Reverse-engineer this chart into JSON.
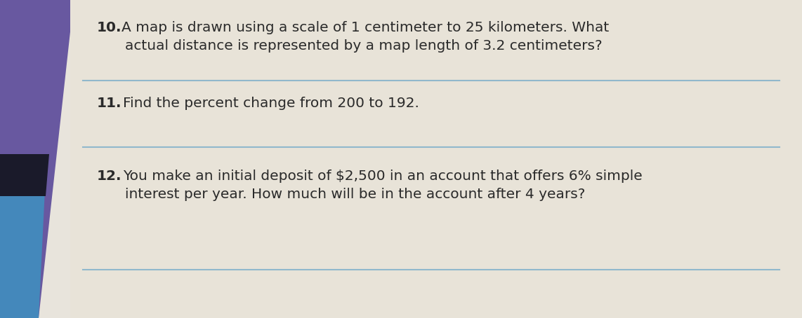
{
  "background_color": "#e8e4dc",
  "left_color_top": "#7060a8",
  "left_color_bottom": "#4090c0",
  "line_color": "#90b8cc",
  "text_color": "#2a2a2a",
  "q10_line1": "A map is drawn using a scale of 1 centimeter to 25 kilometers. What",
  "q10_line2": "actual distance is represented by a map length of 3.2 centimeters?",
  "q11_line1": "Find the percent change from 200 to 192.",
  "q12_line1": "You make an initial deposit of $2,500 in an account that offers 6% simple",
  "q12_line2": "interest per year. How much will be in the account after 4 years?",
  "figwidth": 11.42,
  "figheight": 4.54,
  "dpi": 100
}
